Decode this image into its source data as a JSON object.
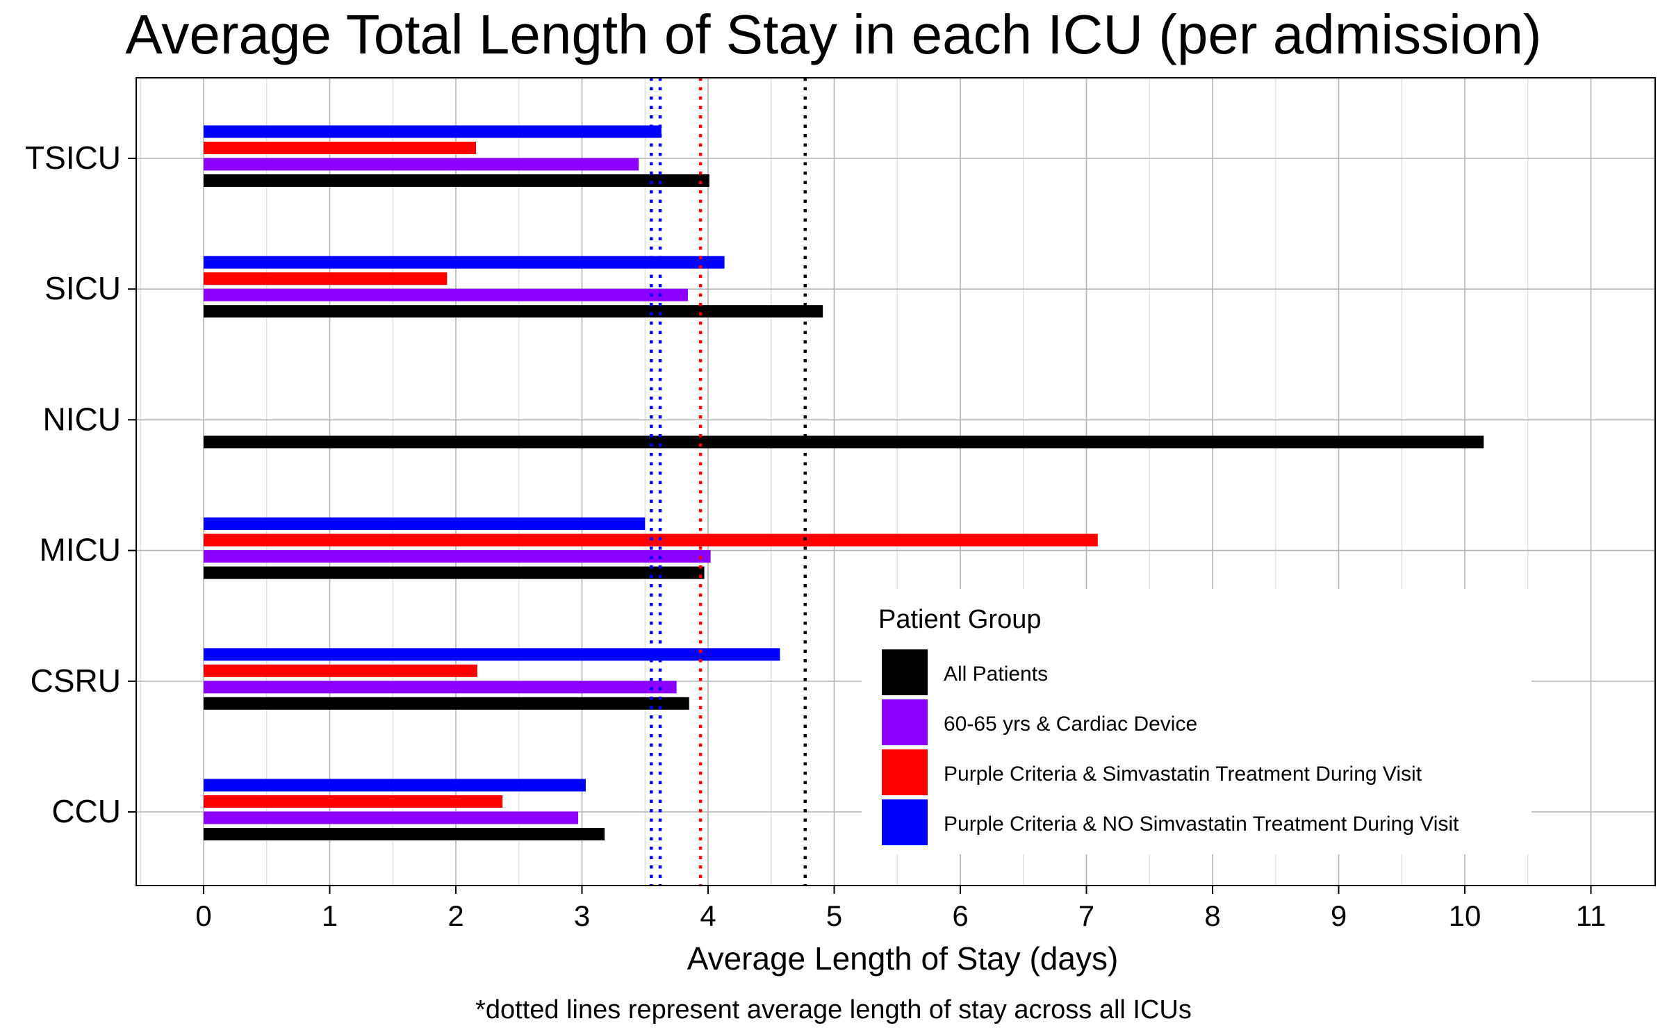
{
  "chart_data": {
    "type": "bar",
    "orientation": "horizontal",
    "title": "Average Total Length of Stay in each ICU (per admission)",
    "xlabel": "Average Length of Stay (days)",
    "ylabel": "",
    "footnote": "*dotted lines represent average length of stay across all ICUs",
    "xlim": [
      -0.55,
      11.5
    ],
    "xticks": [
      0,
      1,
      2,
      3,
      4,
      5,
      6,
      7,
      8,
      9,
      10,
      11
    ],
    "grid": true,
    "categories": [
      "TSICU",
      "SICU",
      "NICU",
      "MICU",
      "CSRU",
      "CCU"
    ],
    "series": [
      {
        "name": "All Patients",
        "color": "#000000",
        "values": [
          4.01,
          4.91,
          10.15,
          3.97,
          3.85,
          3.18
        ]
      },
      {
        "name": "60-65 yrs & Cardiac Device",
        "color": "#8B00FF",
        "values": [
          3.45,
          3.84,
          null,
          4.02,
          3.75,
          2.97
        ]
      },
      {
        "name": "Purple Criteria & Simvastatin Treatment During Visit",
        "color": "#FF0000",
        "values": [
          2.16,
          1.93,
          null,
          7.09,
          2.17,
          2.37
        ]
      },
      {
        "name": "Purple Criteria & NO Simvastatin Treatment During Visit",
        "color": "#0000FF",
        "values": [
          3.63,
          4.13,
          null,
          3.5,
          4.57,
          3.03
        ]
      }
    ],
    "reference_lines": [
      {
        "series": "All Patients",
        "value": 4.77,
        "color": "#000000",
        "style": "dotted"
      },
      {
        "series": "Purple Criteria & Simvastatin Treatment During Visit",
        "value": 3.94,
        "color": "#FF0000",
        "style": "dotted"
      },
      {
        "series": "60-65 yrs & Cardiac Device",
        "value": 3.55,
        "color": "#0000FF",
        "style": "dotted"
      },
      {
        "series": "Purple Criteria & NO Simvastatin Treatment During Visit",
        "value": 3.62,
        "color": "#0000FF",
        "style": "dotted"
      }
    ],
    "legend": {
      "title": "Patient Group",
      "placement": "bottom-right inside",
      "items": [
        {
          "label": "All Patients",
          "color": "#000000"
        },
        {
          "label": "60-65 yrs & Cardiac Device",
          "color": "#8B00FF"
        },
        {
          "label": "Purple Criteria & Simvastatin Treatment During Visit",
          "color": "#FF0000"
        },
        {
          "label": "Purple Criteria & NO Simvastatin Treatment During Visit",
          "color": "#0000FF"
        }
      ]
    }
  }
}
